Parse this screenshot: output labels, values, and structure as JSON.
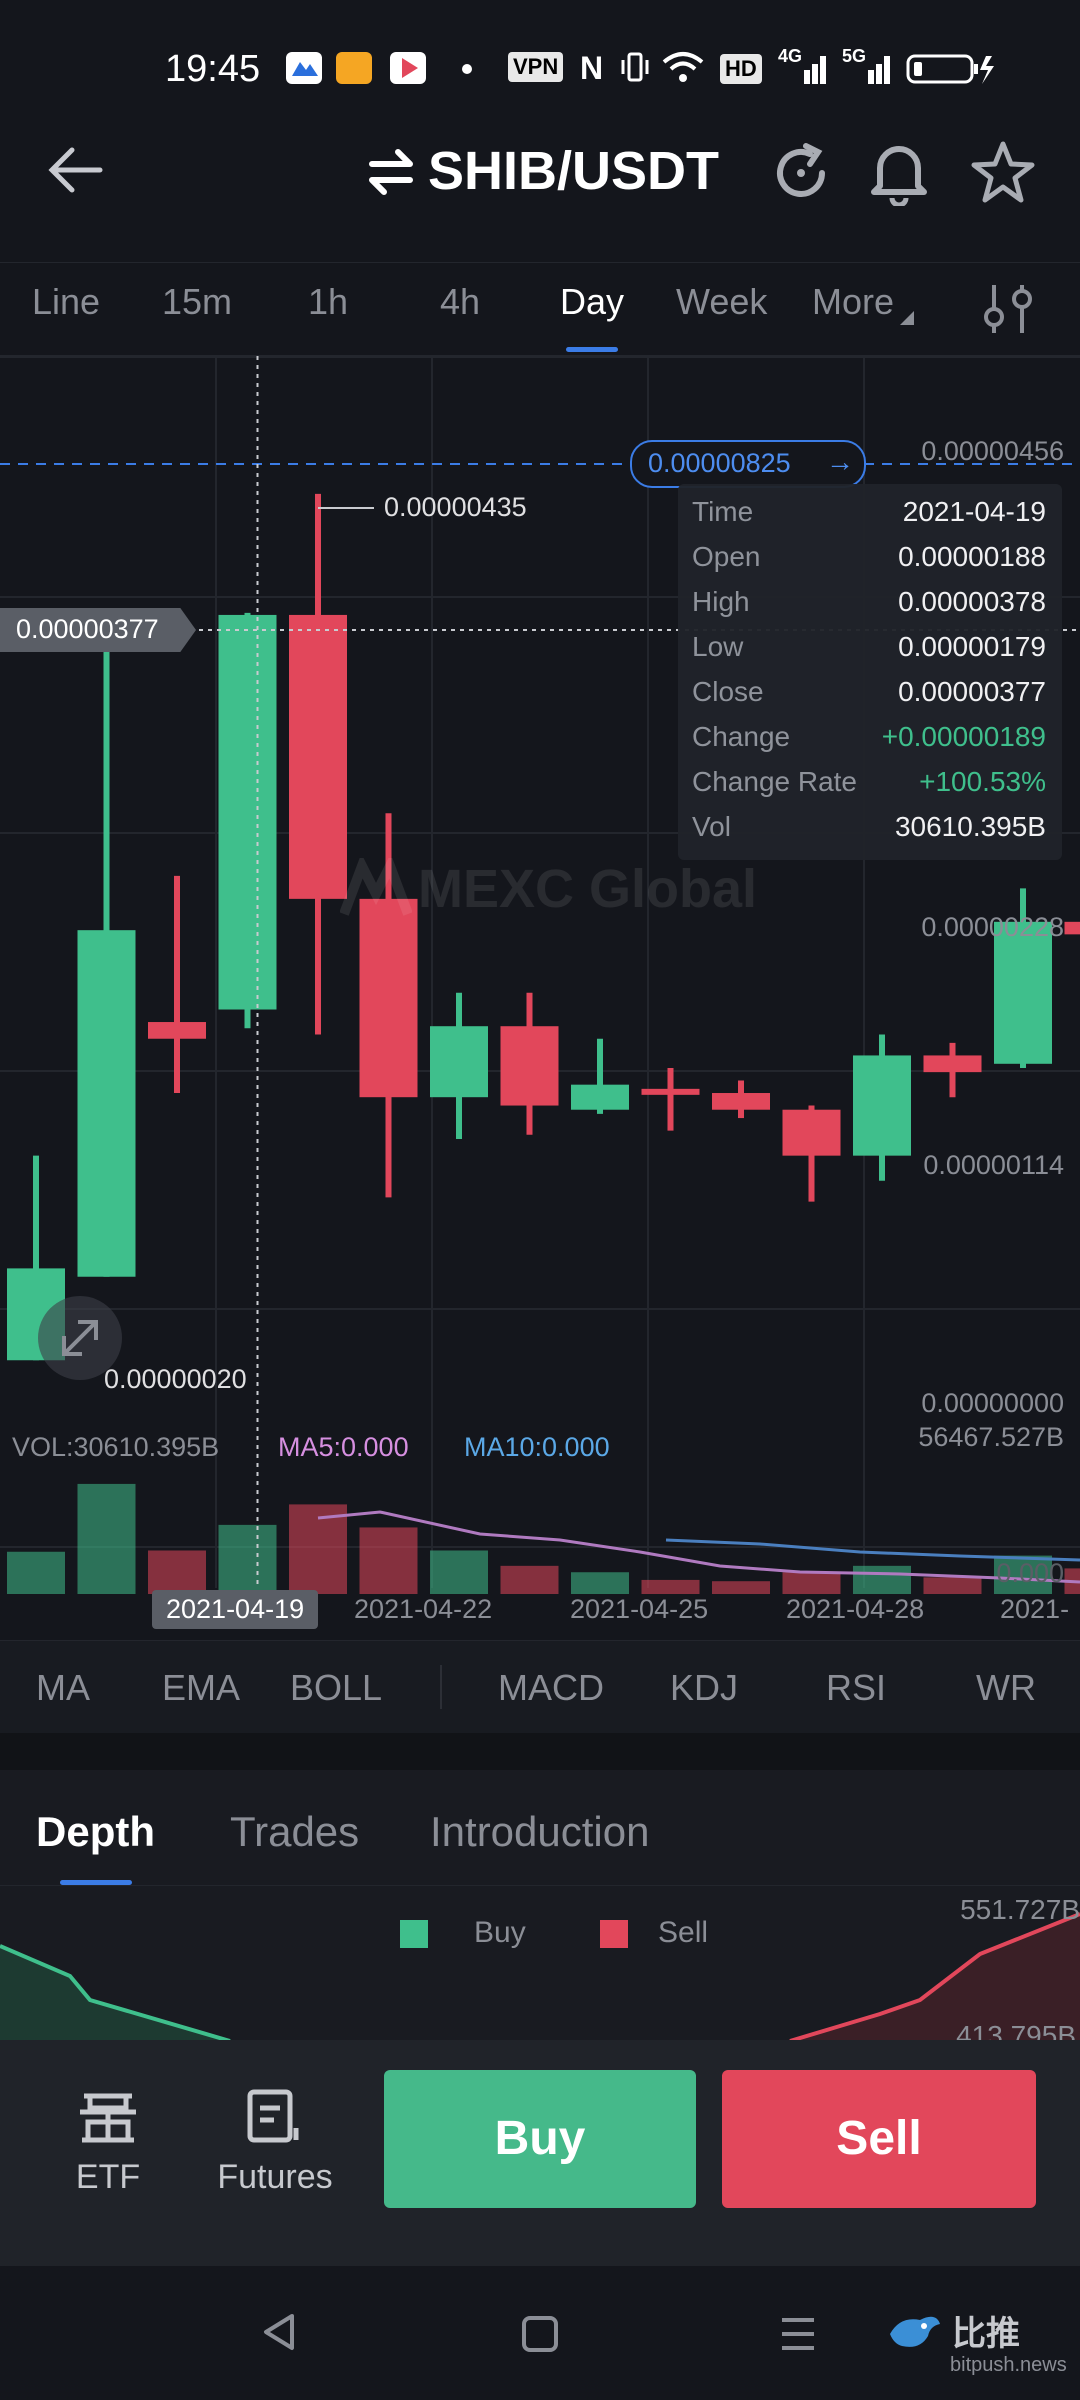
{
  "status_bar": {
    "time": "19:45",
    "vpn": "VPN",
    "hd": "HD",
    "net1": "4G",
    "net2": "5G"
  },
  "header": {
    "title": "SHIB/USDT",
    "icons": [
      "back-arrow-icon",
      "swap-icon",
      "refresh-icon",
      "bell-icon",
      "star-icon"
    ]
  },
  "tabs": {
    "items": [
      "Line",
      "15m",
      "1h",
      "4h",
      "Day",
      "Week",
      "More"
    ],
    "active": "Day"
  },
  "chart": {
    "price_labels": [
      "0.00000456",
      "0.00000228",
      "0.00000114",
      "0.00000000"
    ],
    "current_price_tag": "0.00000825",
    "crosshair_price": "0.00000377",
    "high_marker": "0.00000435",
    "low_marker": "0.00000020",
    "watermark": "MEXC Global",
    "vol_label": "VOL:30610.395B",
    "ma5_label": "MA5:0.000",
    "ma10_label": "MA10:0.000",
    "vol_axis_max": "56467.527B",
    "vol_axis_min": "0.000",
    "crosshair_date": "2021-04-19",
    "dates": [
      "2021-04-22",
      "2021-04-25",
      "2021-04-28",
      "2021-"
    ]
  },
  "tooltip": {
    "rows": [
      {
        "label": "Time",
        "value": "2021-04-19"
      },
      {
        "label": "Open",
        "value": "0.00000188"
      },
      {
        "label": "High",
        "value": "0.00000378"
      },
      {
        "label": "Low",
        "value": "0.00000179"
      },
      {
        "label": "Close",
        "value": "0.00000377"
      },
      {
        "label": "Change",
        "value": "+0.00000189"
      },
      {
        "label": "Change Rate",
        "value": "+100.53%"
      },
      {
        "label": "Vol",
        "value": "30610.395B"
      }
    ]
  },
  "chart_data": {
    "type": "candlestick",
    "title": "",
    "ylim": [
      0,
      4.56e-06
    ],
    "candles": [
      {
        "open": 2e-07,
        "close": 6.4e-07,
        "high": 1.18e-06,
        "low": 2e-07,
        "up": true
      },
      {
        "open": 6e-07,
        "close": 2.26e-06,
        "high": 3.74e-06,
        "low": 6e-07,
        "up": true
      },
      {
        "open": 1.82e-06,
        "close": 1.74e-06,
        "high": 2.52e-06,
        "low": 1.48e-06,
        "up": false
      },
      {
        "open": 1.88e-06,
        "close": 3.77e-06,
        "high": 3.78e-06,
        "low": 1.79e-06,
        "up": true
      },
      {
        "open": 3.77e-06,
        "close": 2.41e-06,
        "high": 4.35e-06,
        "low": 1.76e-06,
        "up": false
      },
      {
        "open": 2.41e-06,
        "close": 1.46e-06,
        "high": 2.82e-06,
        "low": 9.8e-07,
        "up": false
      },
      {
        "open": 1.46e-06,
        "close": 1.8e-06,
        "high": 1.96e-06,
        "low": 1.26e-06,
        "up": true
      },
      {
        "open": 1.8e-06,
        "close": 1.42e-06,
        "high": 1.96e-06,
        "low": 1.28e-06,
        "up": false
      },
      {
        "open": 1.4e-06,
        "close": 1.52e-06,
        "high": 1.74e-06,
        "low": 1.38e-06,
        "up": true
      },
      {
        "open": 1.5e-06,
        "close": 1.5e-06,
        "high": 1.6e-06,
        "low": 1.3e-06,
        "up": false
      },
      {
        "open": 1.48e-06,
        "close": 1.4e-06,
        "high": 1.54e-06,
        "low": 1.36e-06,
        "up": false
      },
      {
        "open": 1.4e-06,
        "close": 1.18e-06,
        "high": 1.42e-06,
        "low": 9.6e-07,
        "up": false
      },
      {
        "open": 1.18e-06,
        "close": 1.66e-06,
        "high": 1.76e-06,
        "low": 1.06e-06,
        "up": true
      },
      {
        "open": 1.66e-06,
        "close": 1.58e-06,
        "high": 1.72e-06,
        "low": 1.46e-06,
        "up": false
      },
      {
        "open": 1.62e-06,
        "close": 2.3e-06,
        "high": 2.46e-06,
        "low": 1.6e-06,
        "up": true
      },
      {
        "open": 2.3e-06,
        "close": 2.24e-06,
        "high": 2.32e-06,
        "low": 2.2e-06,
        "up": false
      }
    ],
    "volumes": [
      0.33,
      0.86,
      0.34,
      0.54,
      0.7,
      0.52,
      0.34,
      0.22,
      0.17,
      0.11,
      0.1,
      0.17,
      0.22,
      0.13,
      0.3,
      0.2
    ],
    "colors": {
      "up": "#3fbf8c",
      "down": "#e2475b"
    }
  },
  "indicators": [
    "MA",
    "EMA",
    "BOLL",
    "MACD",
    "KDJ",
    "RSI",
    "WR"
  ],
  "section_tabs": {
    "items": [
      "Depth",
      "Trades",
      "Introduction"
    ],
    "active": "Depth"
  },
  "depth": {
    "legend_buy": "Buy",
    "legend_sell": "Sell",
    "axis_top": "551.727B",
    "axis_2": "413.795B"
  },
  "bottom_bar": {
    "etf": "ETF",
    "futures": "Futures",
    "buy": "Buy",
    "sell": "Sell"
  },
  "nav": {
    "watermark_cn": "比推",
    "watermark_en": "bitpush.news"
  }
}
